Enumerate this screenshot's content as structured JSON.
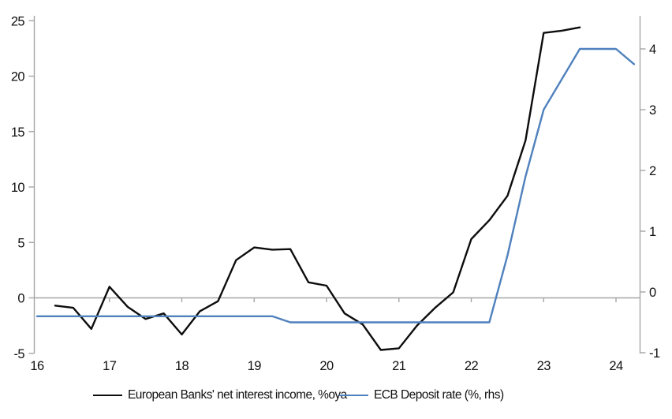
{
  "chart_data": {
    "type": "line",
    "title": "",
    "x_axis": {
      "tick_values": [
        16,
        17,
        18,
        19,
        20,
        21,
        22,
        23,
        24
      ],
      "tick_labels": [
        "16",
        "17",
        "18",
        "19",
        "20",
        "21",
        "22",
        "23",
        "24"
      ],
      "range": [
        16,
        24.35
      ]
    },
    "left_axis": {
      "tick_values": [
        -5,
        0,
        5,
        10,
        15,
        20,
        25
      ],
      "tick_labels": [
        "-5",
        "0",
        "5",
        "10",
        "15",
        "20",
        "25"
      ],
      "range": [
        -5,
        25.5
      ]
    },
    "right_axis": {
      "tick_values": [
        -1,
        0,
        1,
        2,
        3,
        4
      ],
      "tick_labels": [
        "-1",
        "0",
        "1",
        "2",
        "3",
        "4"
      ],
      "range": [
        -1,
        4.55
      ]
    },
    "grid": "zero-line-only",
    "legend_position": "bottom",
    "series": [
      {
        "name": "European Banks' net interest income, %oya",
        "axis": "left",
        "color": "#0d0d0d",
        "x": [
          16.25,
          16.5,
          16.75,
          17.0,
          17.25,
          17.5,
          17.75,
          18.0,
          18.25,
          18.5,
          18.75,
          19.0,
          19.25,
          19.5,
          19.75,
          20.0,
          20.25,
          20.5,
          20.75,
          21.0,
          21.25,
          21.5,
          21.75,
          22.0,
          22.25,
          22.5,
          22.75,
          23.0,
          23.25,
          23.5
        ],
        "values": [
          -0.7,
          -0.9,
          -2.8,
          1.0,
          -0.8,
          -1.9,
          -1.4,
          -3.3,
          -1.2,
          -0.3,
          3.4,
          4.55,
          4.35,
          4.4,
          1.4,
          1.1,
          -1.4,
          -2.4,
          -4.7,
          -4.55,
          -2.5,
          -0.9,
          0.5,
          5.3,
          7.0,
          9.2,
          14.2,
          23.9,
          24.1,
          24.4
        ]
      },
      {
        "name": "ECB Deposit rate (%, rhs)",
        "axis": "right",
        "color": "#4F81BD",
        "x": [
          16.0,
          16.25,
          16.5,
          16.75,
          17.0,
          17.25,
          17.5,
          17.75,
          18.0,
          18.25,
          18.5,
          18.75,
          19.0,
          19.25,
          19.5,
          19.75,
          20.0,
          20.25,
          20.5,
          20.75,
          21.0,
          21.25,
          21.5,
          21.75,
          22.0,
          22.25,
          22.5,
          22.75,
          23.0,
          23.25,
          23.5,
          23.75,
          24.0,
          24.25
        ],
        "values": [
          -0.4,
          -0.4,
          -0.4,
          -0.4,
          -0.4,
          -0.4,
          -0.4,
          -0.4,
          -0.4,
          -0.4,
          -0.4,
          -0.4,
          -0.4,
          -0.4,
          -0.5,
          -0.5,
          -0.5,
          -0.5,
          -0.5,
          -0.5,
          -0.5,
          -0.5,
          -0.5,
          -0.5,
          -0.5,
          -0.5,
          0.6,
          1.9,
          3.0,
          3.5,
          4.0,
          4.0,
          4.0,
          3.75
        ]
      }
    ]
  },
  "legend": {
    "nii_label": "European Banks' net interest income, %oya",
    "ecb_label": "ECB Deposit rate (%, rhs)"
  },
  "colors": {
    "axis_gray": "#a6a6a6",
    "zero_line_gray": "#a6a6a6",
    "nii_line": "#0d0d0d",
    "ecb_line": "#4F81BD",
    "label_text": "#111111",
    "background": "#ffffff"
  }
}
